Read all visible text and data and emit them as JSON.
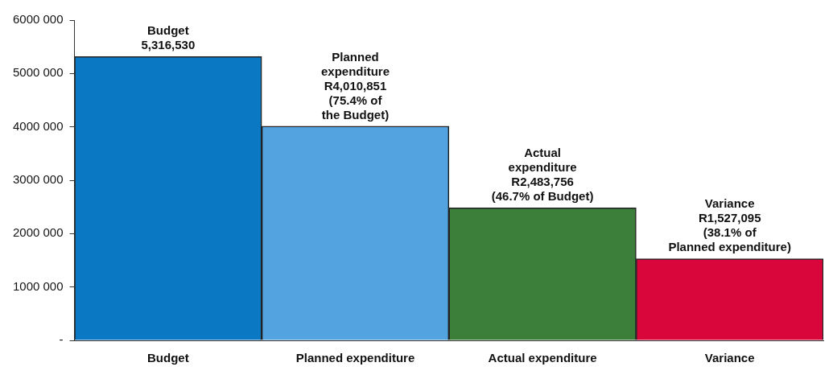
{
  "chart_data": {
    "type": "bar",
    "categories": [
      "Budget",
      "Planned expenditure",
      "Actual expenditure",
      "Variance"
    ],
    "values": [
      5316530,
      4010851,
      2483756,
      1527095
    ],
    "colors": [
      "#0a78c2",
      "#52a3df",
      "#3c7f3a",
      "#d8063a"
    ],
    "value_labels": [
      "Budget\n5,316,530",
      "Planned\nexpenditure\nR4,010,851\n(75.4% of\nthe Budget)",
      "Actual\nexpenditure\nR2,483,756\n(46.7% of Budget)",
      "Variance\nR1,527,095\n(38.1% of\nPlanned expenditure)"
    ],
    "ylim": [
      0,
      6000000
    ],
    "yticks": [
      {
        "value": 0,
        "label": "-"
      },
      {
        "value": 1000000,
        "label": "1000 000"
      },
      {
        "value": 2000000,
        "label": "2000 000"
      },
      {
        "value": 3000000,
        "label": "3000 000"
      },
      {
        "value": 4000000,
        "label": "4000 000"
      },
      {
        "value": 5000000,
        "label": "5000 000"
      },
      {
        "value": 6000000,
        "label": "6000 000"
      }
    ],
    "grid": false,
    "legend": false
  }
}
